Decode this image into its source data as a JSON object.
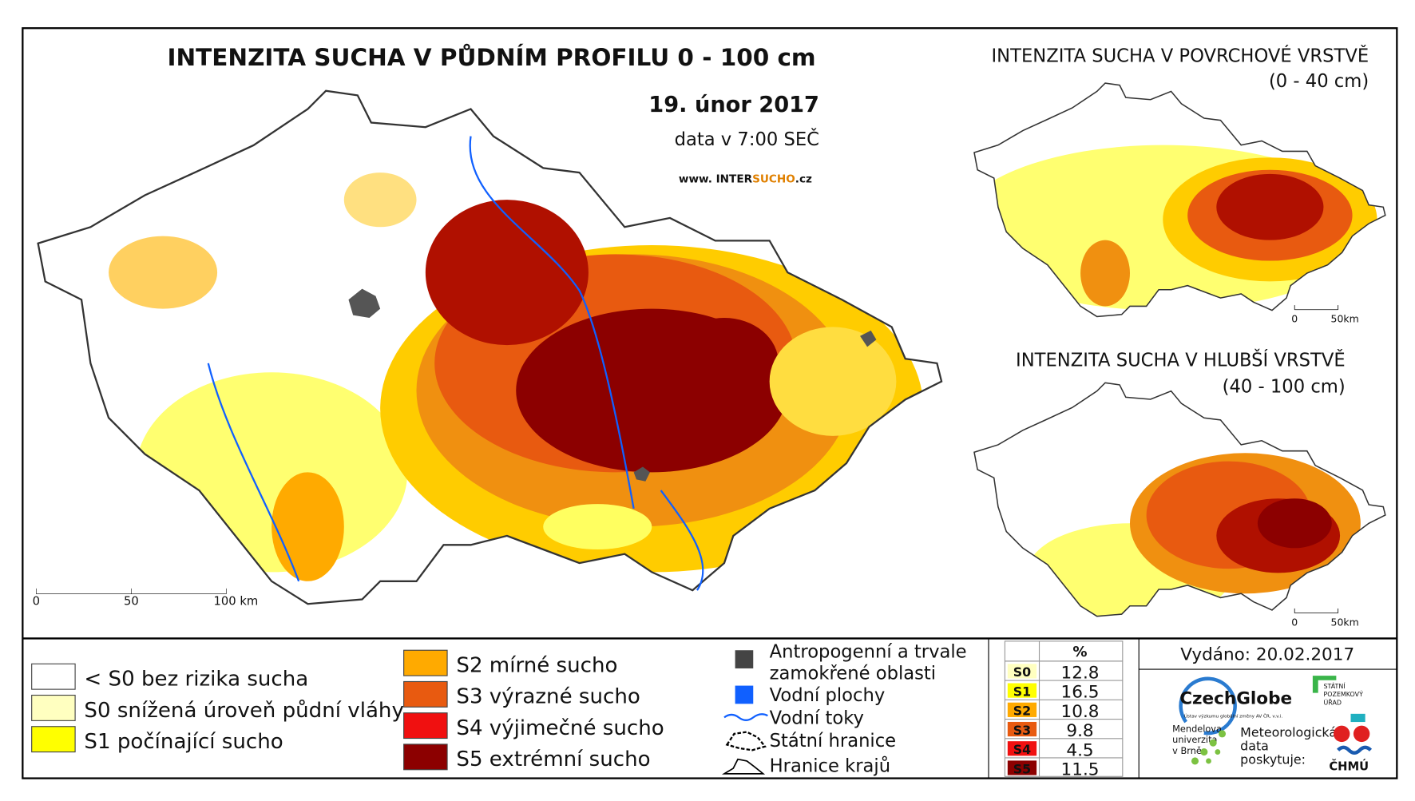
{
  "main_map": {
    "title": "INTENZITA SUCHA V PŮDNÍM PROFILU 0 - 100 cm",
    "date": "19. únor 2017",
    "data_time": "data v 7:00 SEČ",
    "website_prefix": "www. INTER",
    "website_highlight": "SUCHO",
    "website_suffix": ".cz",
    "scale": [
      "0",
      "50",
      "100 km"
    ]
  },
  "inset_surface": {
    "title": "INTENZITA SUCHA V POVRCHOVÉ VRSTVĚ",
    "subtitle": "(0 - 40 cm)",
    "scale": [
      "0",
      "50km"
    ]
  },
  "inset_deep": {
    "title": "INTENZITA SUCHA V HLUBŠÍ VRSTVĚ",
    "subtitle": "(40 - 100 cm)",
    "scale": [
      "0",
      "50km"
    ]
  },
  "legend": {
    "classes": [
      {
        "label": "< S0 bez rizika sucha",
        "color": "#ffffff"
      },
      {
        "label": "S0 snížená úroveň půdní vláhy",
        "color": "#ffffc0"
      },
      {
        "label": "S1 počínající sucho",
        "color": "#ffff00"
      },
      {
        "label": "S2 mírné sucho",
        "color": "#ffaa00"
      },
      {
        "label": "S3 výrazné sucho",
        "color": "#e85a10"
      },
      {
        "label": "S4 výjimečné sucho",
        "color": "#f01010"
      },
      {
        "label": "S5 extrémní sucho",
        "color": "#8c0000"
      }
    ],
    "layers": [
      {
        "label": [
          "Antropogenní a trvale",
          "zamokřené oblasti"
        ]
      },
      {
        "label": [
          "Vodní plochy"
        ]
      },
      {
        "label": [
          "Vodní toky"
        ]
      },
      {
        "label": [
          "Státní hranice"
        ]
      },
      {
        "label": [
          "Hranice krajů"
        ]
      }
    ]
  },
  "table": {
    "header": "%",
    "rows": [
      {
        "code": "S0",
        "value": 12.8,
        "color": "#ffffc0"
      },
      {
        "code": "S1",
        "value": 16.5,
        "color": "#ffff00"
      },
      {
        "code": "S2",
        "value": 10.8,
        "color": "#ffaa00"
      },
      {
        "code": "S3",
        "value": 9.8,
        "color": "#e85a10"
      },
      {
        "code": "S4",
        "value": 4.5,
        "color": "#f01010"
      },
      {
        "code": "S5",
        "value": 11.5,
        "color": "#8c0000"
      }
    ]
  },
  "issued": "Vydáno: 20.02.2017",
  "logos": {
    "czechglobe": "CzechGlobe",
    "czechglobe_sub": "Ústav výzkumu globální změny AV ČR, v.v.i.",
    "spu": [
      "STÁTNÍ",
      "POZEMKOVÝ",
      "ÚŘAD"
    ],
    "mendel": [
      "Mendelova",
      "univerzita",
      "v Brně"
    ],
    "meteo": [
      "Meteorologická",
      "data",
      "poskytuje:"
    ],
    "chmu": "ČHMÚ"
  }
}
